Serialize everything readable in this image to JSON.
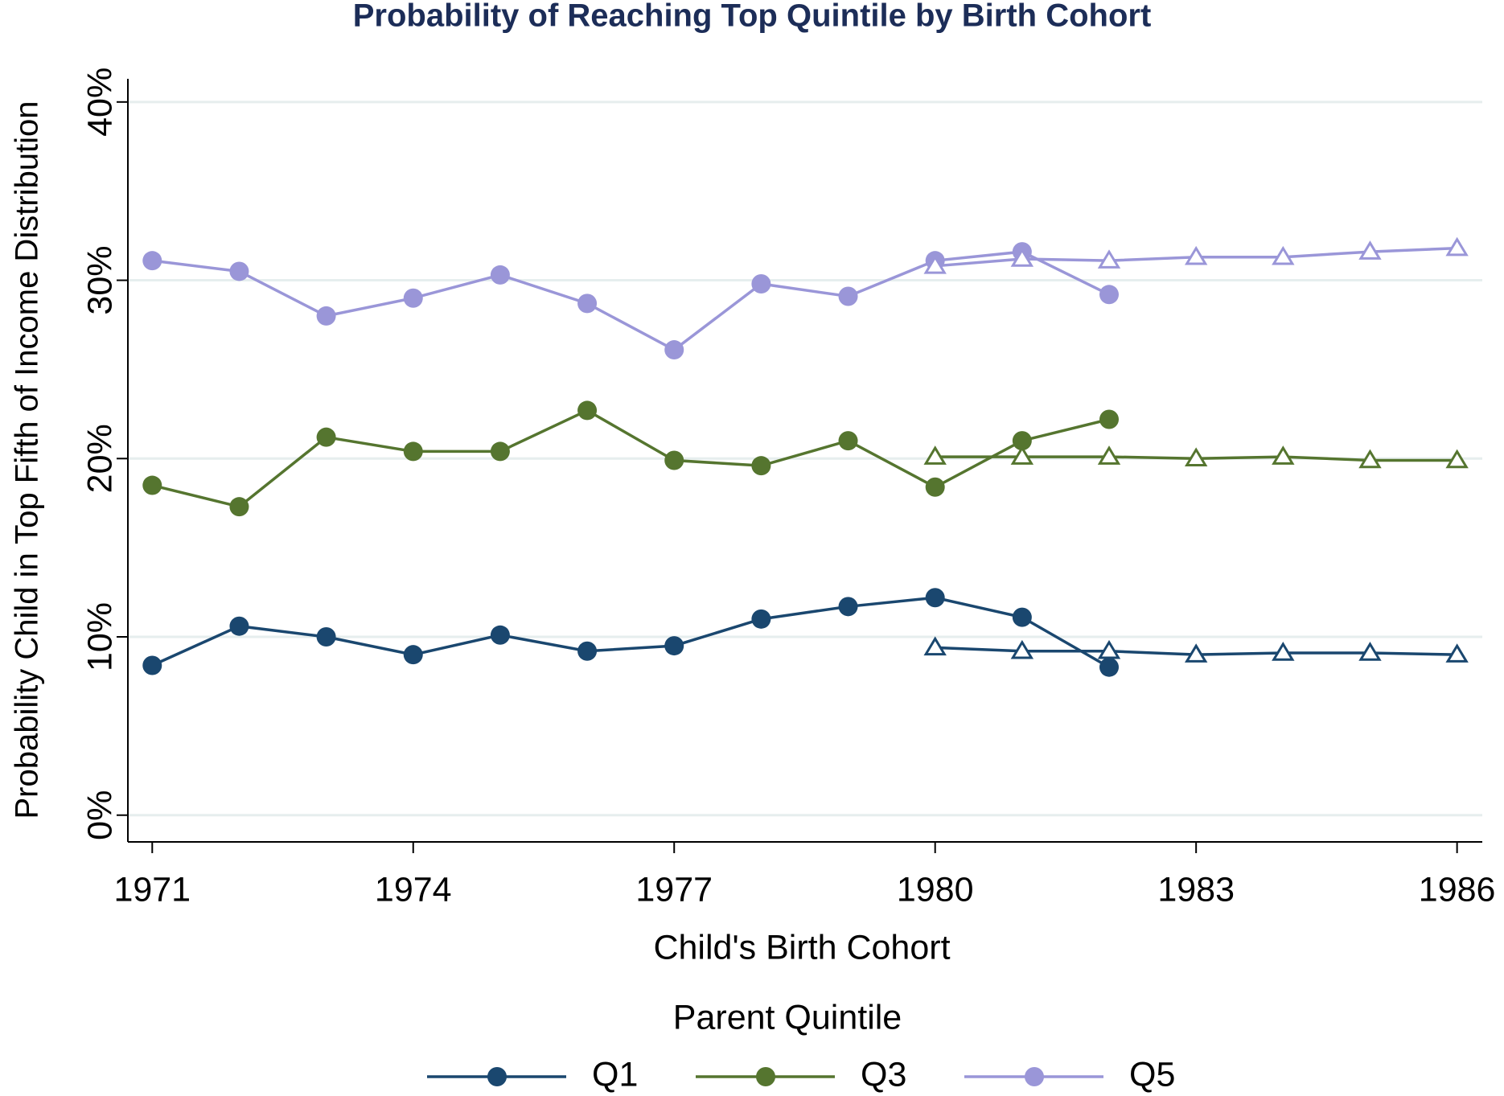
{
  "chart_data": {
    "type": "line",
    "title": "Probability of Reaching Top Quintile by Birth Cohort",
    "x_label": "Child's Birth Cohort",
    "y_label": "Probability Child in Top Fifth of Income Distribution",
    "legend_title": "Parent Quintile",
    "x": [
      1971,
      1972,
      1973,
      1974,
      1975,
      1976,
      1977,
      1978,
      1979,
      1980,
      1981,
      1982,
      1983,
      1984,
      1985,
      1986
    ],
    "series": [
      {
        "name": "Q1",
        "color": "#1a476f",
        "marker": "circle",
        "values": [
          8.4,
          10.6,
          10.0,
          9.0,
          10.1,
          9.2,
          9.5,
          11.0,
          11.7,
          12.2,
          11.1,
          8.3,
          null,
          null,
          null,
          null
        ]
      },
      {
        "name": "Q3",
        "color": "#55752f",
        "marker": "circle",
        "values": [
          18.5,
          17.3,
          21.2,
          20.4,
          20.4,
          22.7,
          19.9,
          19.6,
          21.0,
          18.4,
          21.0,
          22.2,
          null,
          null,
          null,
          null
        ]
      },
      {
        "name": "Q5",
        "color": "#9a96d8",
        "marker": "circle",
        "values": [
          31.1,
          30.5,
          28.0,
          29.0,
          30.3,
          28.7,
          26.1,
          29.8,
          29.1,
          31.1,
          31.6,
          29.2,
          null,
          null,
          null,
          null
        ]
      },
      {
        "color": "#1a476f",
        "marker": "triangle",
        "values": [
          null,
          null,
          null,
          null,
          null,
          null,
          null,
          null,
          null,
          9.4,
          9.2,
          9.2,
          9.0,
          9.1,
          9.1,
          9.0
        ]
      },
      {
        "color": "#55752f",
        "marker": "triangle",
        "values": [
          null,
          null,
          null,
          null,
          null,
          null,
          null,
          null,
          null,
          20.1,
          20.1,
          20.1,
          20.0,
          20.1,
          19.9,
          19.9
        ]
      },
      {
        "color": "#9a96d8",
        "marker": "triangle",
        "values": [
          null,
          null,
          null,
          null,
          null,
          null,
          null,
          null,
          null,
          30.8,
          31.2,
          31.1,
          31.3,
          31.3,
          31.6,
          31.8
        ]
      }
    ],
    "xlim": [
      1970.72,
      1986.29
    ],
    "xticks": [
      1971,
      1974,
      1977,
      1980,
      1983,
      1986
    ],
    "ylim": [
      -1.5,
      41.3
    ],
    "yticks": [
      {
        "value": 0,
        "label": "0%"
      },
      {
        "value": 10,
        "label": "10%"
      },
      {
        "value": 20,
        "label": "20%"
      },
      {
        "value": 30,
        "label": "30%"
      },
      {
        "value": 40,
        "label": "40%"
      }
    ],
    "grid": true
  }
}
